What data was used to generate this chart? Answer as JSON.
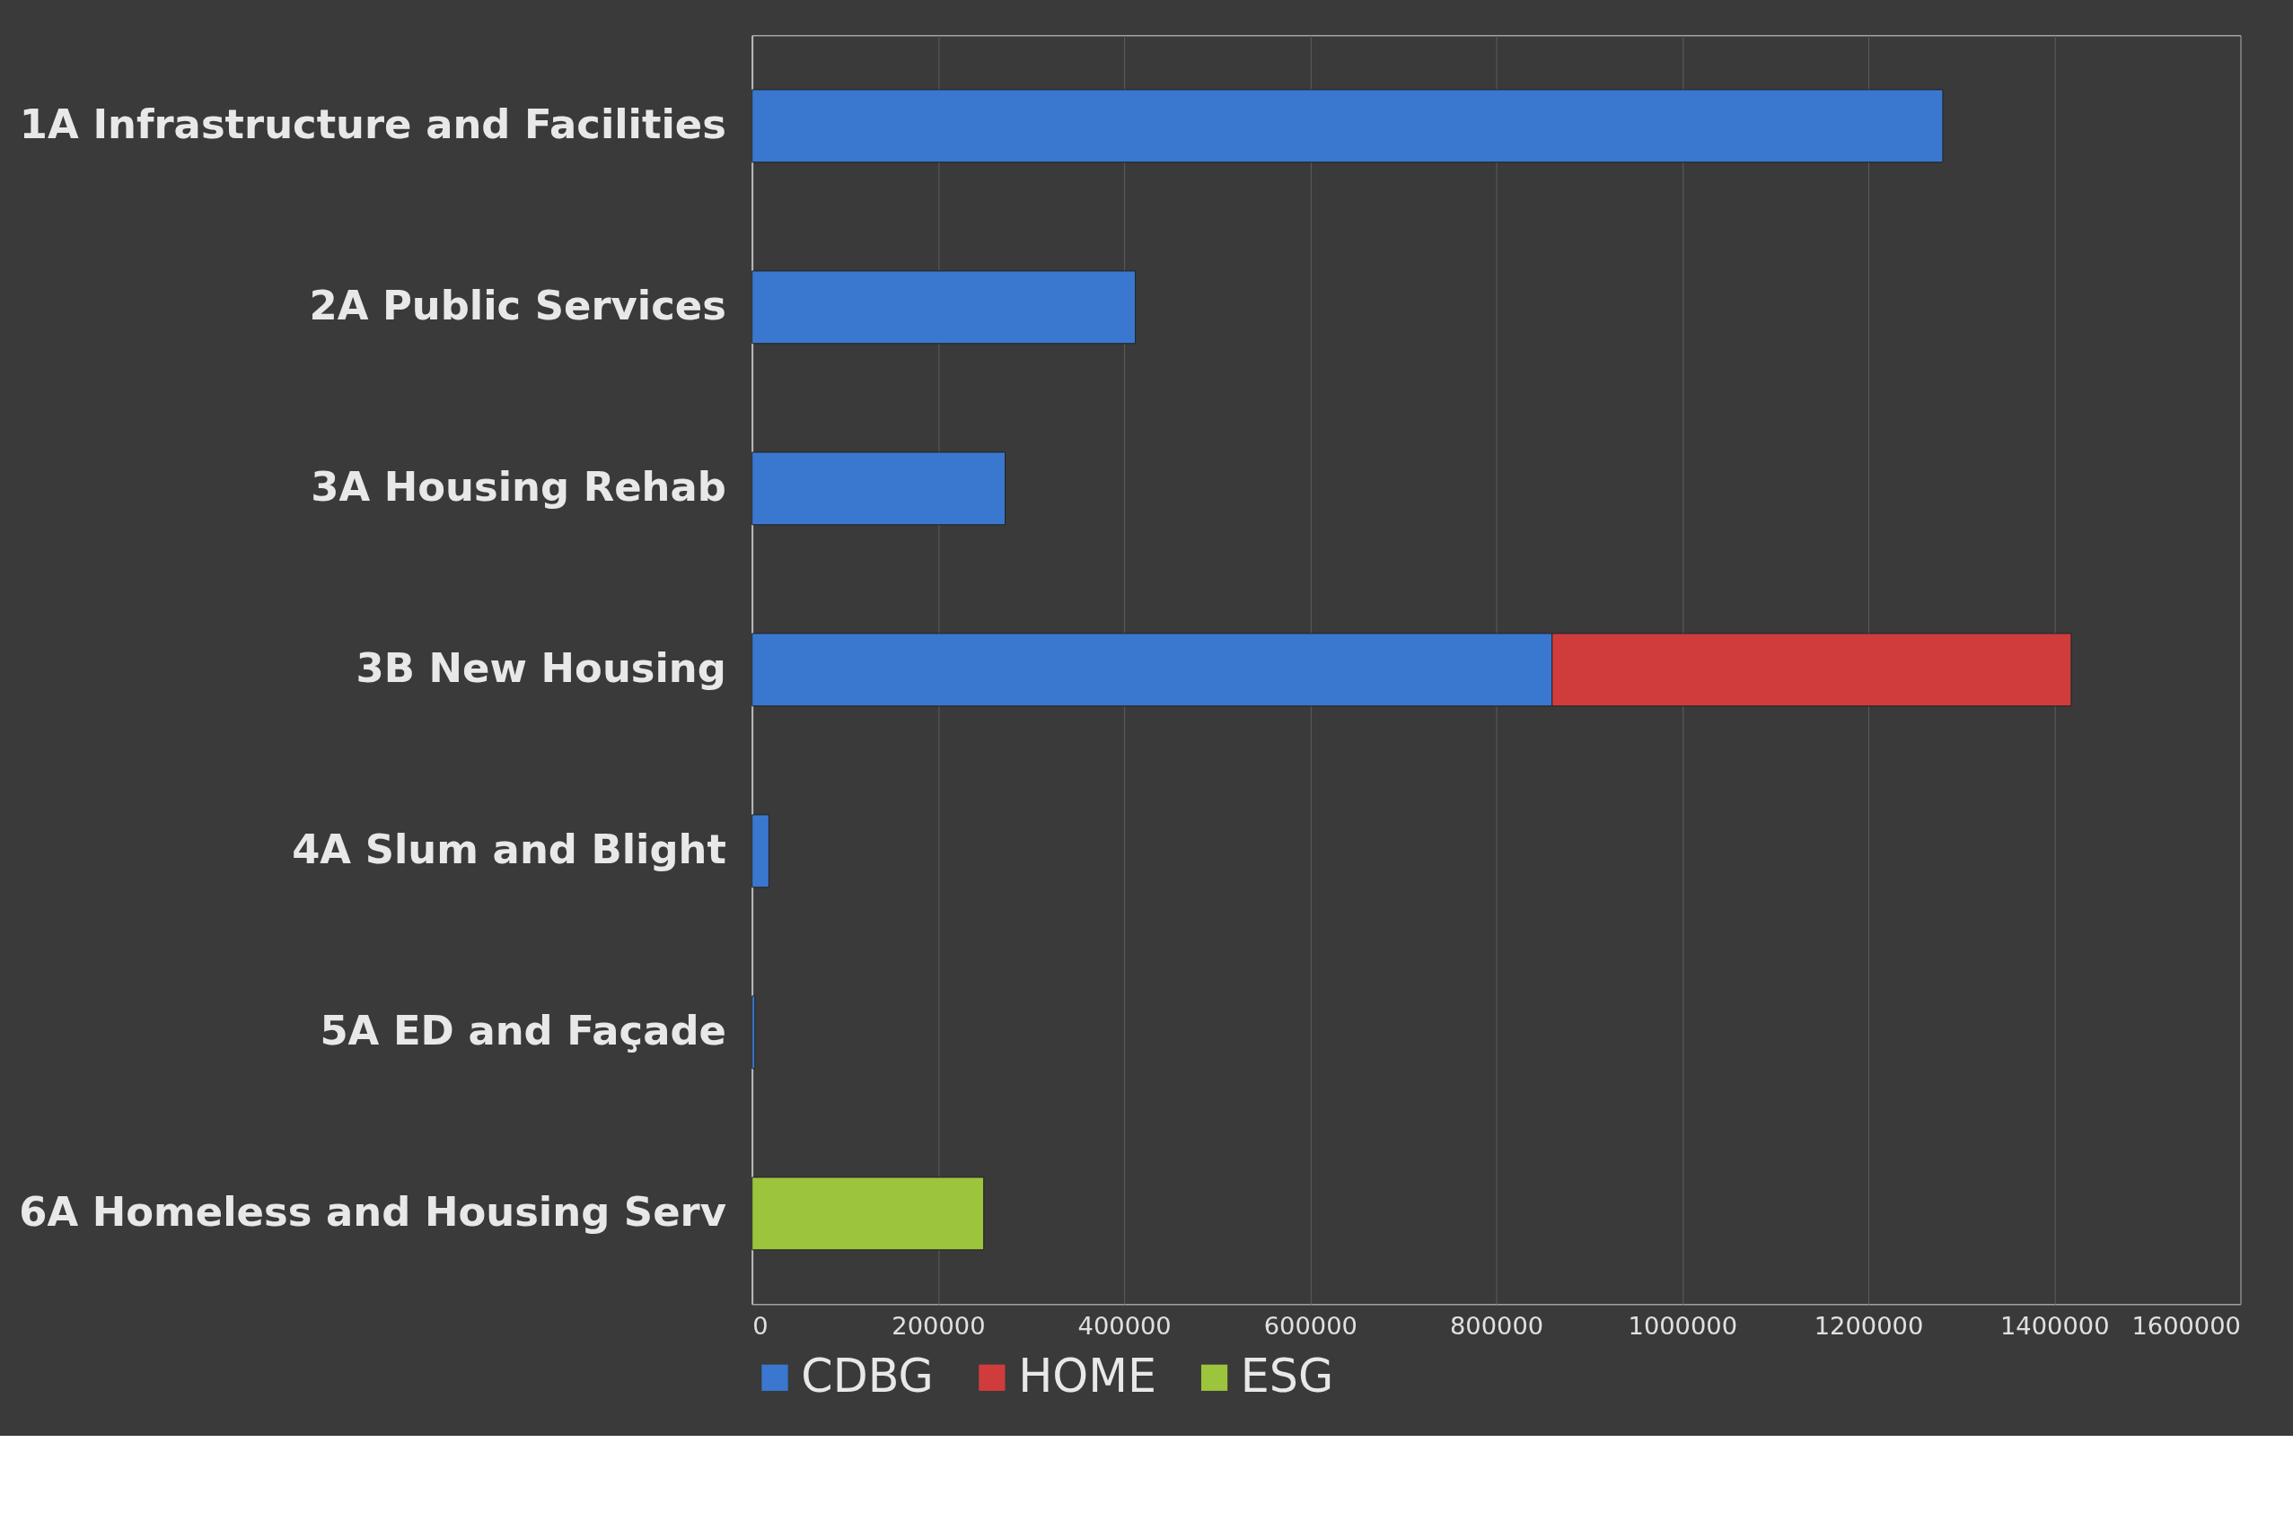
{
  "chart_data": {
    "type": "bar",
    "orientation": "horizontal",
    "stacked": true,
    "categories": [
      "1A Infrastructure and Facilities",
      "2A Public Services",
      "3A Housing Rehab",
      "3B New Housing",
      "4A Slum and Blight",
      "5A ED and Façade",
      "6A Homeless and Housing Serv"
    ],
    "series": [
      {
        "name": "CDBG",
        "color": "#3a78d0",
        "values": [
          1280000,
          412000,
          272000,
          860000,
          18000,
          3000,
          null
        ]
      },
      {
        "name": "HOME",
        "color": "#d03c3c",
        "values": [
          null,
          null,
          null,
          558000,
          null,
          null,
          null
        ]
      },
      {
        "name": "ESG",
        "color": "#9cc43c",
        "values": [
          null,
          null,
          null,
          null,
          null,
          null,
          249000
        ]
      }
    ],
    "xlim": [
      0,
      1600000
    ],
    "xticks": [
      0,
      200000,
      400000,
      600000,
      800000,
      1000000,
      1200000,
      1400000,
      1600000
    ],
    "grid": "x",
    "legend": "bottom"
  }
}
